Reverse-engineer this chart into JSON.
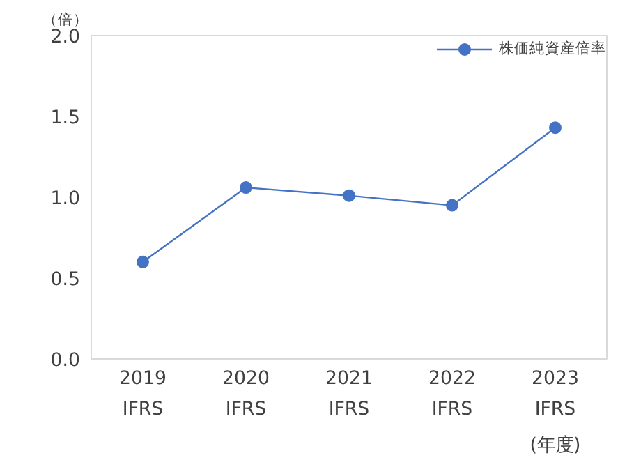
{
  "chart_data": {
    "type": "line",
    "ylabel": "（倍）",
    "xlabel": "(年度)",
    "categories": [
      "2019\nIFRS",
      "2020\nIFRS",
      "2021\nIFRS",
      "2022\nIFRS",
      "2023\nIFRS"
    ],
    "series": [
      {
        "name": "株価純資産倍率",
        "color": "#4472c4",
        "values": [
          0.6,
          1.06,
          1.01,
          0.95,
          1.43
        ]
      }
    ],
    "ylim": [
      0,
      2.0
    ],
    "yticks": [
      {
        "value": 0,
        "label": "0.0"
      },
      {
        "value": 0.5,
        "label": "0.5"
      },
      {
        "value": 1.0,
        "label": "1.0"
      },
      {
        "value": 1.5,
        "label": "1.5"
      },
      {
        "value": 2.0,
        "label": "2.0"
      }
    ],
    "grid": false,
    "legend": "top right",
    "marker": "circle",
    "line_style": "solid"
  }
}
